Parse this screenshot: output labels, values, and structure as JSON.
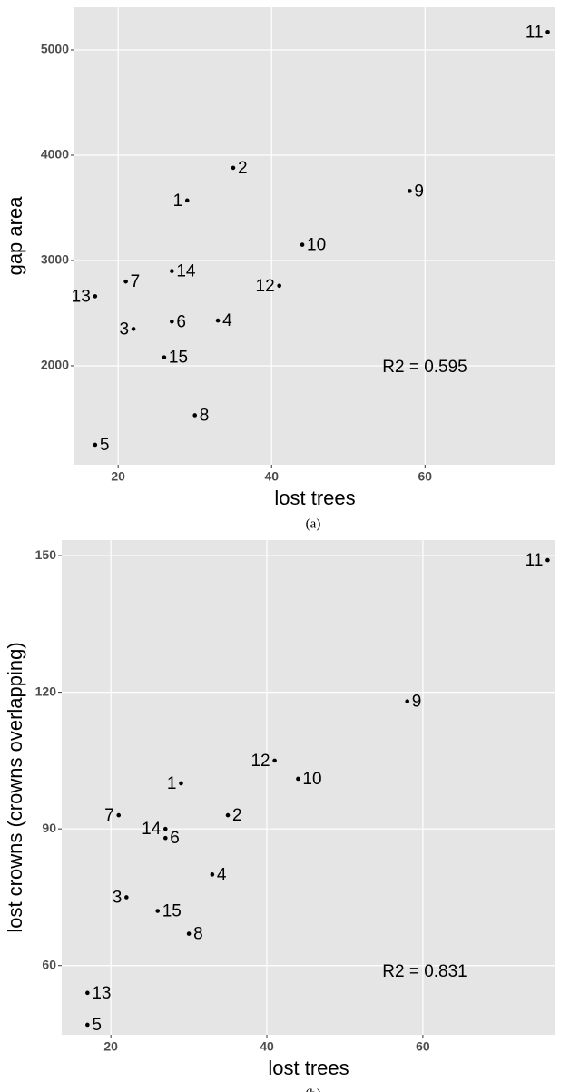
{
  "chart_data": [
    {
      "type": "scatter",
      "x_label": "lost trees",
      "y_label": "gap area",
      "annotation": "R2 = 0.595",
      "caption": "(a)",
      "point_labels": [
        "1",
        "2",
        "3",
        "4",
        "5",
        "6",
        "7",
        "8",
        "9",
        "10",
        "11",
        "12",
        "13",
        "14",
        "15"
      ],
      "x": [
        29,
        35,
        22,
        33,
        17,
        27,
        21,
        30,
        58,
        44,
        76,
        41,
        17,
        27,
        26
      ],
      "values": [
        3570,
        3880,
        2350,
        2430,
        1250,
        2420,
        2800,
        1530,
        3660,
        3150,
        5170,
        2760,
        2660,
        2900,
        2080
      ],
      "color": "#000000",
      "xlim": [
        14.3,
        77
      ],
      "ylim": [
        1060,
        5405
      ],
      "xticks": [
        20,
        40,
        60
      ],
      "yticks": [
        2000,
        3000,
        4000,
        5000
      ],
      "grid": true
    },
    {
      "type": "scatter",
      "x_label": "lost trees",
      "y_label": "lost crowns (crowns overlapping)",
      "annotation": "R2 = 0.831",
      "caption": "(b)",
      "point_labels": [
        "1",
        "2",
        "3",
        "4",
        "5",
        "6",
        "7",
        "8",
        "9",
        "10",
        "11",
        "12",
        "13",
        "14",
        "15"
      ],
      "x": [
        29,
        35,
        22,
        33,
        17,
        27,
        21,
        30,
        58,
        44,
        76,
        41,
        17,
        27,
        26
      ],
      "values": [
        100,
        93,
        75,
        80,
        47,
        88,
        93,
        67,
        118,
        101,
        149,
        105,
        54,
        90,
        72
      ],
      "color": "#000000",
      "xlim": [
        13.7,
        77
      ],
      "ylim": [
        44.8,
        153.4
      ],
      "xticks": [
        20,
        40,
        60
      ],
      "yticks": [
        60,
        90,
        120,
        150
      ],
      "grid": true
    }
  ]
}
